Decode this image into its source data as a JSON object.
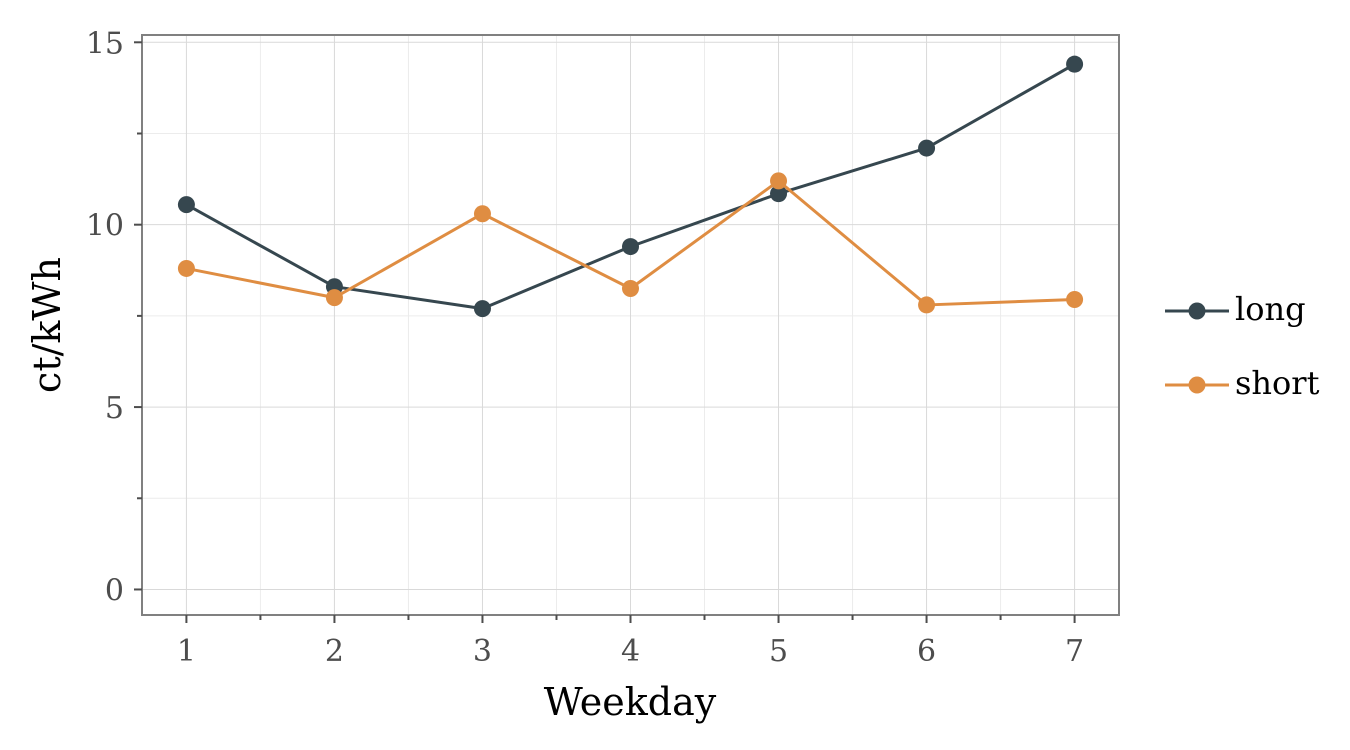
{
  "chart_data": {
    "type": "line",
    "title": "",
    "xlabel": "Weekday",
    "ylabel": "ct/kWh",
    "x": [
      1,
      2,
      3,
      4,
      5,
      6,
      7
    ],
    "x_ticks": [
      "1",
      "2",
      "3",
      "4",
      "5",
      "6",
      "7"
    ],
    "xlim": [
      0.7,
      7.3
    ],
    "ylim": [
      -0.7,
      15.2
    ],
    "y_ticks": [
      "0",
      "5",
      "10",
      "15"
    ],
    "y_tick_values": [
      0,
      5,
      10,
      15
    ],
    "y_minor_ticks": [
      2.5,
      7.5,
      12.5
    ],
    "grid": true,
    "legend_position": "right",
    "series": [
      {
        "name": "long",
        "color": "#36474f",
        "values": [
          10.55,
          8.3,
          7.7,
          9.4,
          10.85,
          12.1,
          14.4
        ]
      },
      {
        "name": "short",
        "color": "#df8d42",
        "values": [
          8.8,
          8.0,
          10.3,
          8.25,
          11.2,
          7.8,
          7.95
        ]
      }
    ]
  }
}
